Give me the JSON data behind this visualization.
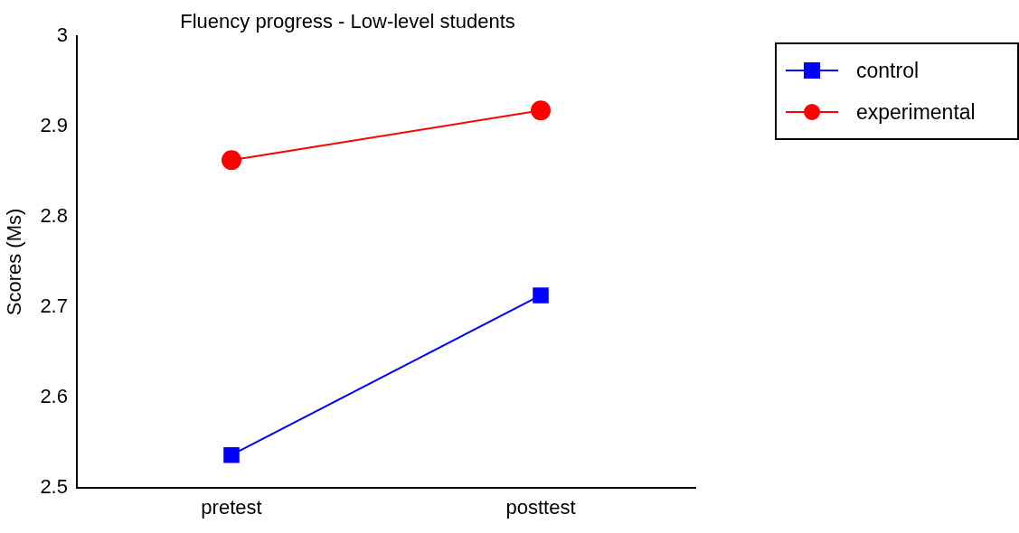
{
  "chart_data": {
    "type": "line",
    "title": "Fluency progress - Low-level students",
    "ylabel": "Scores (Ms)",
    "categories": [
      "pretest",
      "posttest"
    ],
    "series": [
      {
        "name": "control",
        "color": "#0000ff",
        "values": [
          2.536,
          2.713
        ],
        "marker": "square"
      },
      {
        "name": "experimental",
        "color": "#ff0000",
        "values": [
          2.863,
          2.918
        ],
        "marker": "circle"
      }
    ],
    "ylim": [
      2.5,
      3
    ],
    "yticks": [
      2.5,
      2.6,
      2.7,
      2.8,
      2.9,
      3
    ],
    "grid": false,
    "legend": "top right",
    "line_style": "solid"
  }
}
